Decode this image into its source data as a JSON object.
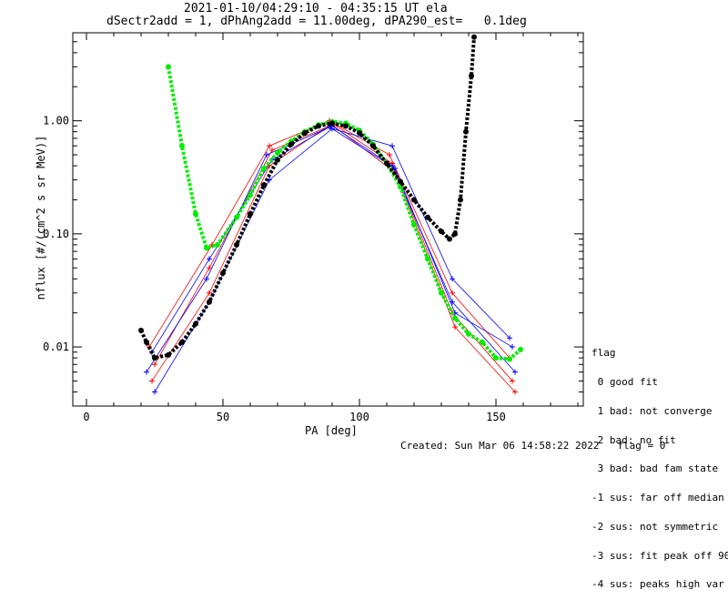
{
  "chart_data": {
    "type": "line",
    "title_line1": "2021-01-10/04:29:10 - 04:35:15 UT ela",
    "title_line2": "dSectr2add = 1, dPhAng2add = 11.00deg, dPA290_est=   0.1deg",
    "xlabel": "PA [deg]",
    "ylabel": "nflux [#/(cm^2 s sr MeV)]",
    "x_ticks": [
      "0",
      "50",
      "100",
      "150"
    ],
    "y_ticks": [
      "0.01",
      "0.10",
      "1.00"
    ],
    "xlim": [
      -5,
      182
    ],
    "ylim": [
      0.003,
      6.0
    ],
    "yscale": "log",
    "series": [
      {
        "name": "red",
        "color": "#ff0000",
        "points": [
          [
            24,
            0.005
          ],
          [
            45,
            0.03
          ],
          [
            67,
            0.4
          ],
          [
            90,
            0.95
          ],
          [
            112,
            0.42
          ],
          [
            134,
            0.02
          ],
          [
            156,
            0.005
          ],
          [
            25,
            0.007
          ],
          [
            45,
            0.05
          ],
          [
            68,
            0.55
          ],
          [
            90,
            0.92
          ],
          [
            113,
            0.35
          ],
          [
            135,
            0.015
          ],
          [
            157,
            0.004
          ],
          [
            23,
            0.01
          ],
          [
            46,
            0.08
          ],
          [
            67,
            0.6
          ],
          [
            89,
            1.0
          ],
          [
            111,
            0.5
          ],
          [
            134,
            0.03
          ],
          [
            155,
            0.008
          ]
        ]
      },
      {
        "name": "blue",
        "color": "#0000ff",
        "points": [
          [
            22,
            0.006
          ],
          [
            44,
            0.04
          ],
          [
            66,
            0.5
          ],
          [
            90,
            0.9
          ],
          [
            112,
            0.4
          ],
          [
            134,
            0.025
          ],
          [
            157,
            0.006
          ],
          [
            24,
            0.009
          ],
          [
            45,
            0.06
          ],
          [
            68,
            0.45
          ],
          [
            89,
            0.88
          ],
          [
            113,
            0.38
          ],
          [
            135,
            0.02
          ],
          [
            156,
            0.01
          ],
          [
            25,
            0.004
          ],
          [
            45,
            0.025
          ],
          [
            67,
            0.3
          ],
          [
            90,
            0.85
          ],
          [
            112,
            0.6
          ],
          [
            134,
            0.04
          ],
          [
            155,
            0.012
          ]
        ]
      },
      {
        "name": "green fit",
        "color": "#00ee00",
        "points": [
          [
            30,
            3.0
          ],
          [
            35,
            0.6
          ],
          [
            40,
            0.15
          ],
          [
            44,
            0.075
          ],
          [
            48,
            0.08
          ],
          [
            55,
            0.14
          ],
          [
            60,
            0.22
          ],
          [
            65,
            0.38
          ],
          [
            70,
            0.52
          ],
          [
            75,
            0.66
          ],
          [
            80,
            0.8
          ],
          [
            85,
            0.92
          ],
          [
            90,
            0.98
          ],
          [
            95,
            0.95
          ],
          [
            100,
            0.82
          ],
          [
            105,
            0.62
          ],
          [
            110,
            0.42
          ],
          [
            115,
            0.26
          ],
          [
            120,
            0.12
          ],
          [
            125,
            0.06
          ],
          [
            130,
            0.03
          ],
          [
            135,
            0.018
          ],
          [
            140,
            0.013
          ],
          [
            145,
            0.011
          ],
          [
            150,
            0.008
          ],
          [
            155,
            0.0078
          ],
          [
            159,
            0.0095
          ]
        ]
      },
      {
        "name": "black fit",
        "color": "#000000",
        "points": [
          [
            20,
            0.014
          ],
          [
            22,
            0.011
          ],
          [
            25,
            0.008
          ],
          [
            30,
            0.0085
          ],
          [
            35,
            0.011
          ],
          [
            40,
            0.016
          ],
          [
            45,
            0.025
          ],
          [
            50,
            0.045
          ],
          [
            55,
            0.08
          ],
          [
            60,
            0.15
          ],
          [
            65,
            0.27
          ],
          [
            70,
            0.45
          ],
          [
            75,
            0.62
          ],
          [
            80,
            0.78
          ],
          [
            85,
            0.9
          ],
          [
            90,
            0.95
          ],
          [
            95,
            0.9
          ],
          [
            100,
            0.78
          ],
          [
            105,
            0.6
          ],
          [
            110,
            0.42
          ],
          [
            115,
            0.29
          ],
          [
            120,
            0.2
          ],
          [
            125,
            0.14
          ],
          [
            130,
            0.105
          ],
          [
            133,
            0.09
          ],
          [
            135,
            0.1
          ],
          [
            137,
            0.2
          ],
          [
            139,
            0.8
          ],
          [
            141,
            2.5
          ],
          [
            142,
            5.5
          ]
        ]
      }
    ]
  },
  "legend": {
    "title": "flag",
    "entries": [
      " 0 good fit",
      " 1 bad: not converge",
      " 2 bad: no fit",
      " 3 bad: bad fam state",
      "-1 sus: far off median",
      "-2 sus: not symmetric",
      "-3 sus: fit peak off 90",
      "-4 sus: peaks high var"
    ]
  },
  "footer": "Created: Sun Mar 06 14:58:22 2022   flag = 0"
}
